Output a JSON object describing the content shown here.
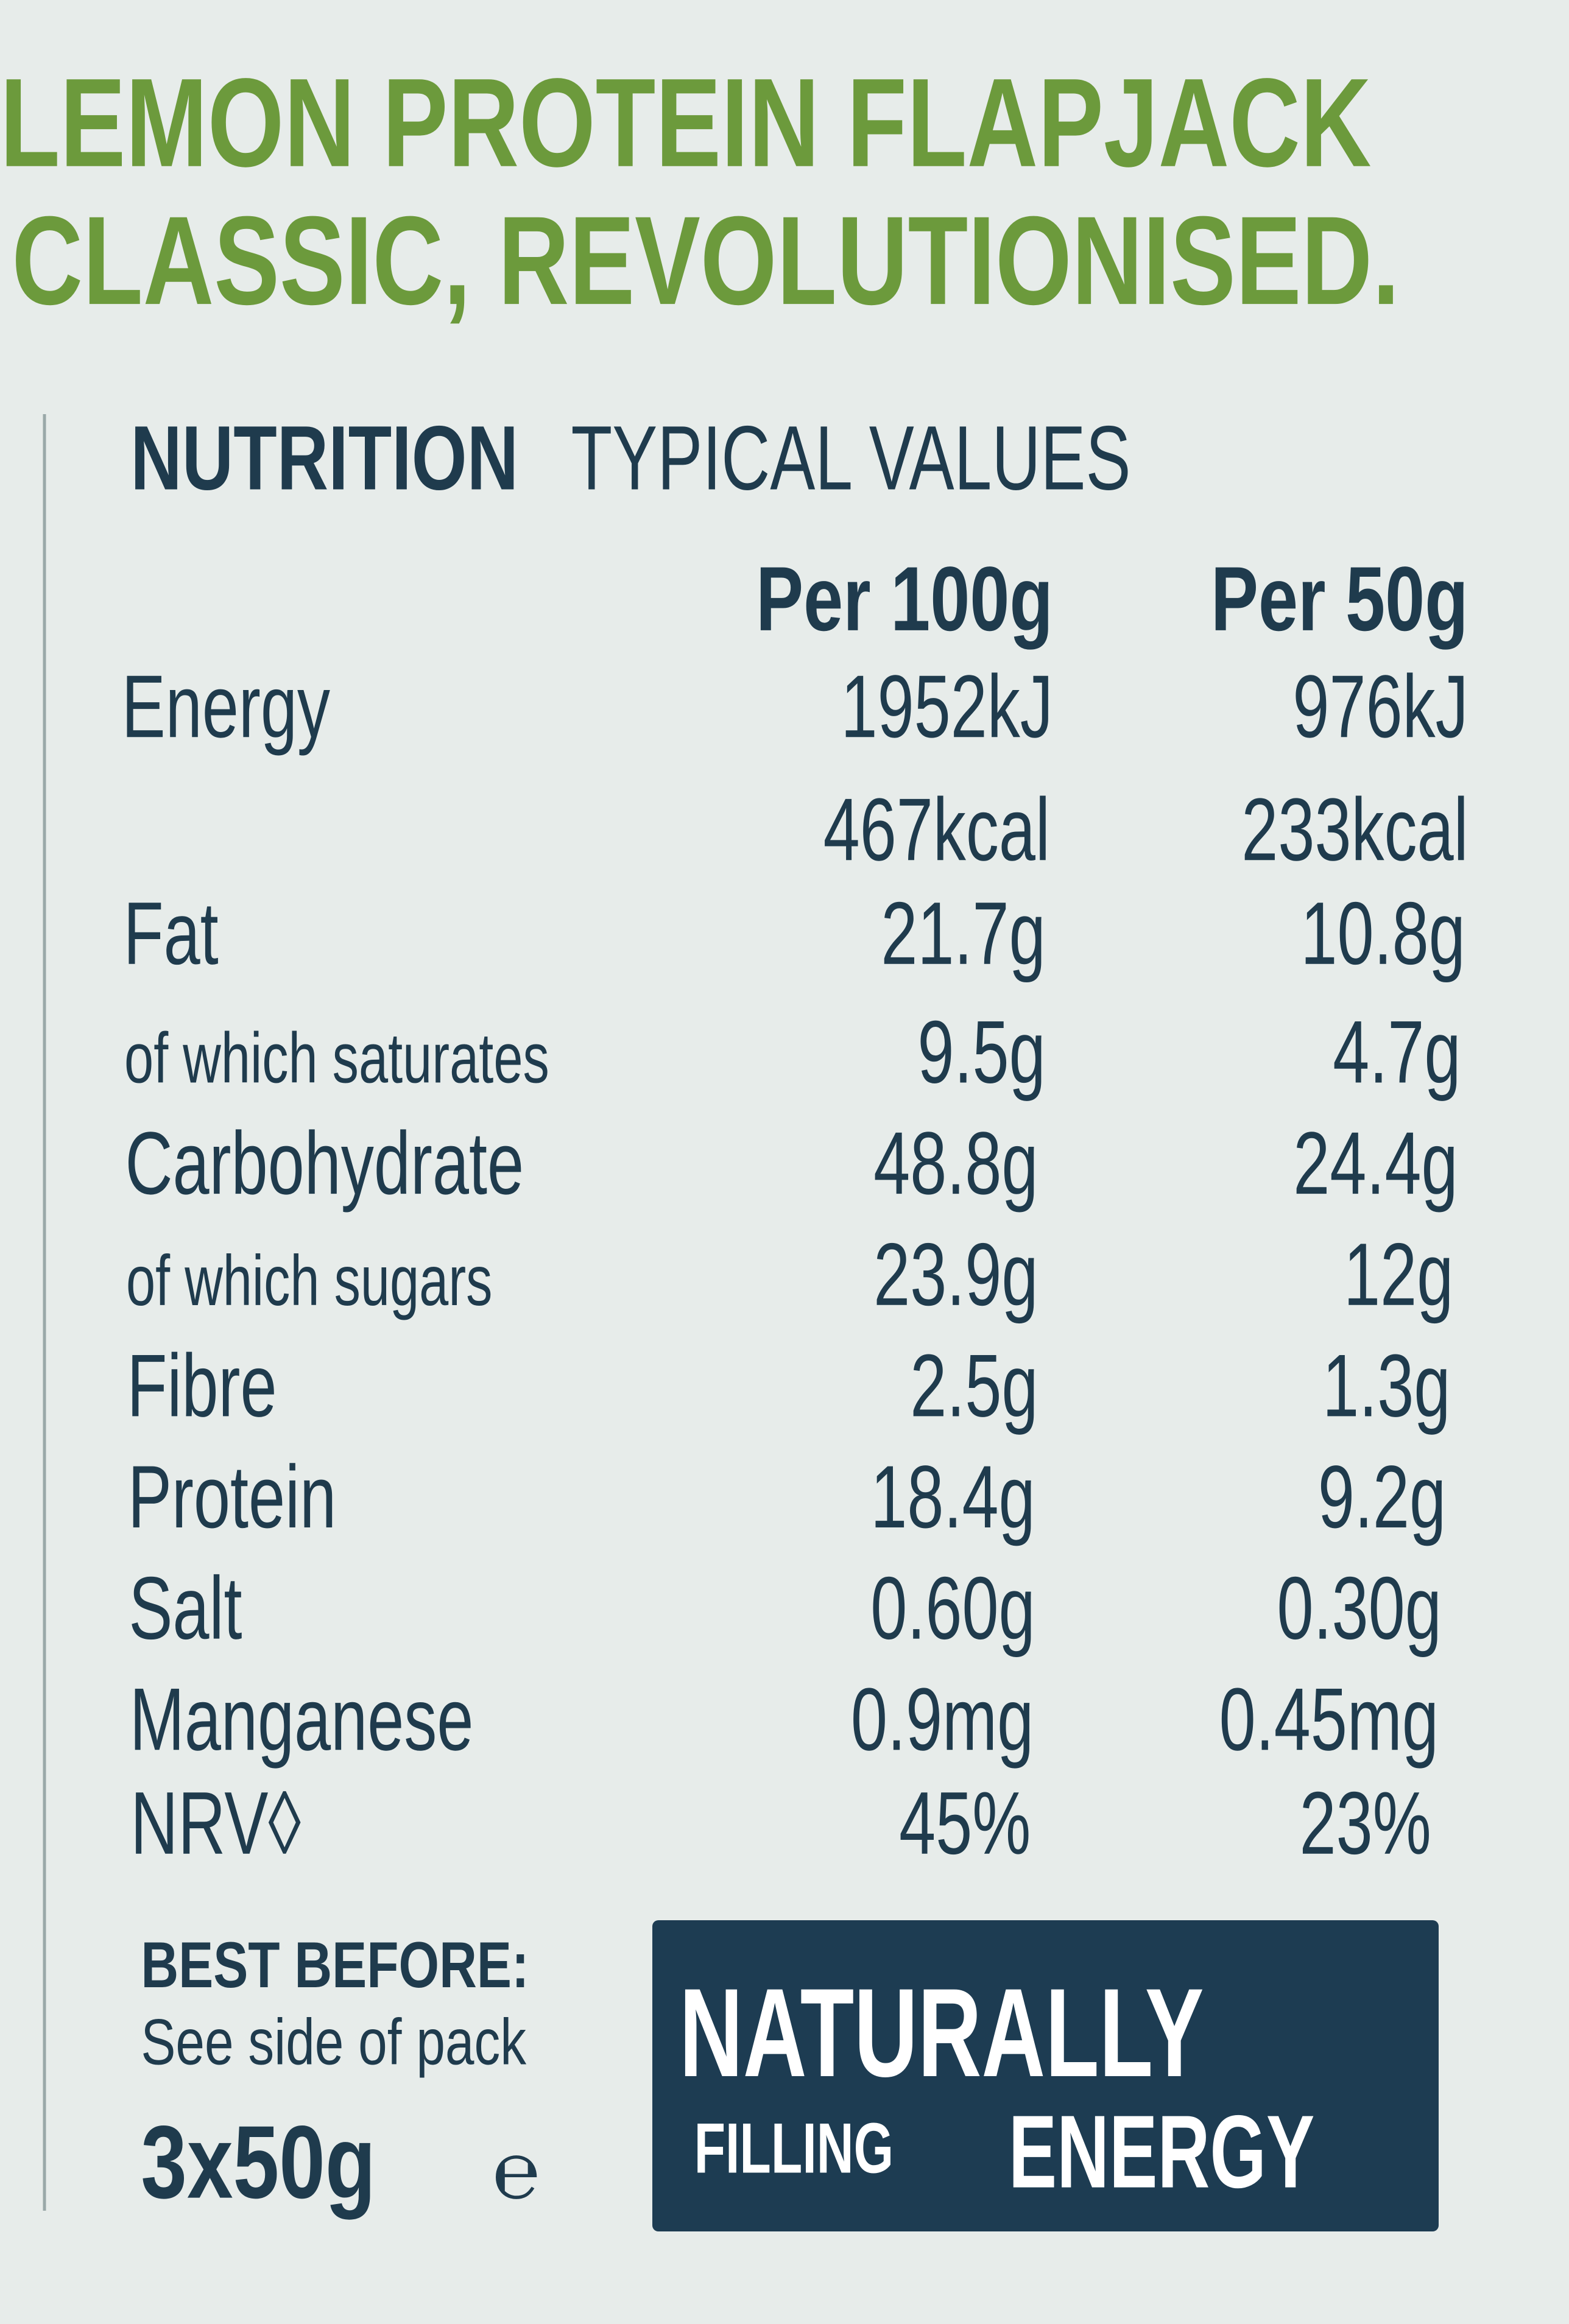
{
  "header": {
    "title": "LEMON PROTEIN FLAPJACK",
    "tagline": "CLASSIC, REVOLUTIONISED."
  },
  "nutrition": {
    "title_bold": "NUTRITION",
    "title": "TYPICAL VALUES",
    "columns": [
      "Per 100g",
      "Per 50g"
    ],
    "rows": [
      {
        "label": "Energy",
        "values": [
          "1952kJ",
          "976kJ"
        ]
      },
      {
        "values": [
          "467kcal",
          "233kcal"
        ]
      },
      {
        "label": "Fat",
        "values": [
          "21.7g",
          "10.8g"
        ]
      },
      {
        "label": "of which saturates",
        "values": [
          "9.5g",
          "4.7g"
        ]
      },
      {
        "label": "Carbohydrate",
        "values": [
          "48.8g",
          "24.4g"
        ]
      },
      {
        "label": "of which sugars",
        "values": [
          "23.9g",
          "12g"
        ]
      },
      {
        "label": "Fibre",
        "values": [
          "2.5g",
          "1.3g"
        ]
      },
      {
        "label": "Protein",
        "values": [
          "18.4g",
          "9.2g"
        ]
      },
      {
        "label": "Salt",
        "values": [
          "0.60g",
          "0.30g"
        ]
      },
      {
        "label": "Manganese",
        "values": [
          "0.9mg",
          "0.45mg"
        ]
      },
      {
        "label": "NRV◊",
        "values": [
          "45%",
          "23%"
        ]
      }
    ]
  },
  "footer": {
    "best_before_label": "BEST BEFORE:",
    "best_before": "See side of pack",
    "weight": "3x50g",
    "estimated_sign": "℮"
  },
  "badge": {
    "line1": "NATURALLY",
    "line2a": "FILLING",
    "line2b": "ENERGY"
  }
}
